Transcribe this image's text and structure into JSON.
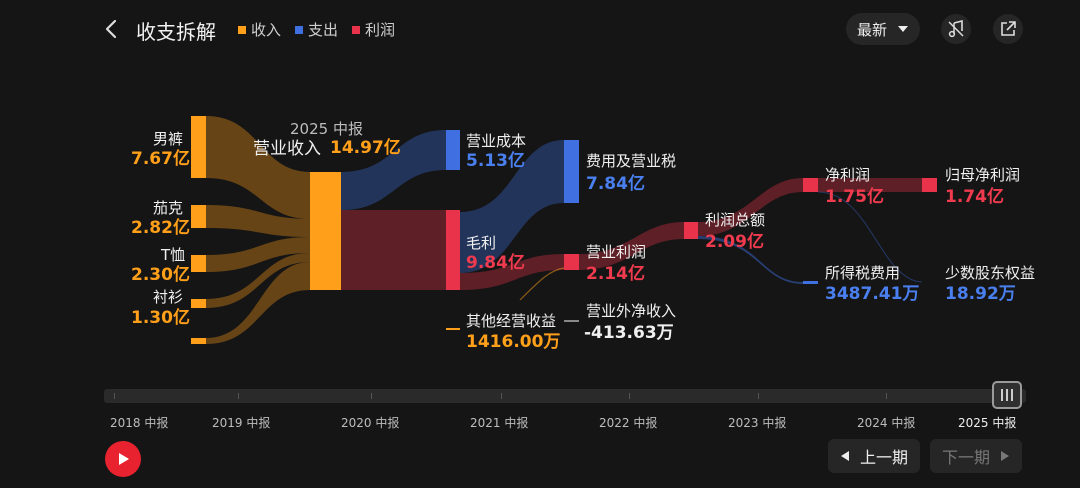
{
  "header": {
    "title": "收支拆解",
    "legend": [
      {
        "label": "收入",
        "color": "#ff9f1a"
      },
      {
        "label": "支出",
        "color": "#3f6fe0"
      },
      {
        "label": "利润",
        "color": "#e8334a"
      }
    ],
    "period_select": "最新",
    "icons": [
      "back-chevron-icon",
      "chevron-down-icon",
      "music-note-off-icon",
      "share-icon"
    ]
  },
  "chart_data": {
    "type": "sankey",
    "period_label": "2025 中报",
    "revenue": {
      "label": "营业收入",
      "value": "14.97亿"
    },
    "sources": [
      {
        "label": "男裤",
        "value": "7.67亿"
      },
      {
        "label": "茄克",
        "value": "2.82亿"
      },
      {
        "label": "T恤",
        "value": "2.30亿"
      },
      {
        "label": "衬衫",
        "value": "1.30亿"
      }
    ],
    "cost": {
      "label": "营业成本",
      "value": "5.13亿"
    },
    "gross_profit": {
      "label": "毛利",
      "value": "9.84亿"
    },
    "other_income": {
      "label": "其他经营收益",
      "value": "1416.00万"
    },
    "expenses": {
      "label": "费用及营业税",
      "value": "7.84亿"
    },
    "operating_profit": {
      "label": "营业利润",
      "value": "2.14亿"
    },
    "non_operating": {
      "label": "营业外净收入",
      "value": "-413.63万"
    },
    "total_profit": {
      "label": "利润总额",
      "value": "2.09亿"
    },
    "net_profit": {
      "label": "净利润",
      "value": "1.75亿"
    },
    "income_tax": {
      "label": "所得税费用",
      "value": "3487.41万"
    },
    "parent_net_profit": {
      "label": "归母净利润",
      "value": "1.74亿"
    },
    "minority_interest": {
      "label": "少数股东权益",
      "value": "18.92万"
    }
  },
  "timeline": {
    "years": [
      "2018 中报",
      "2019 中报",
      "2020 中报",
      "2021 中报",
      "2022 中报",
      "2023 中报",
      "2024 中报",
      "2025 中报"
    ],
    "selected": "2025 中报"
  },
  "controls": {
    "prev_label": "上一期",
    "next_label": "下一期",
    "play_icon": "play-icon"
  }
}
